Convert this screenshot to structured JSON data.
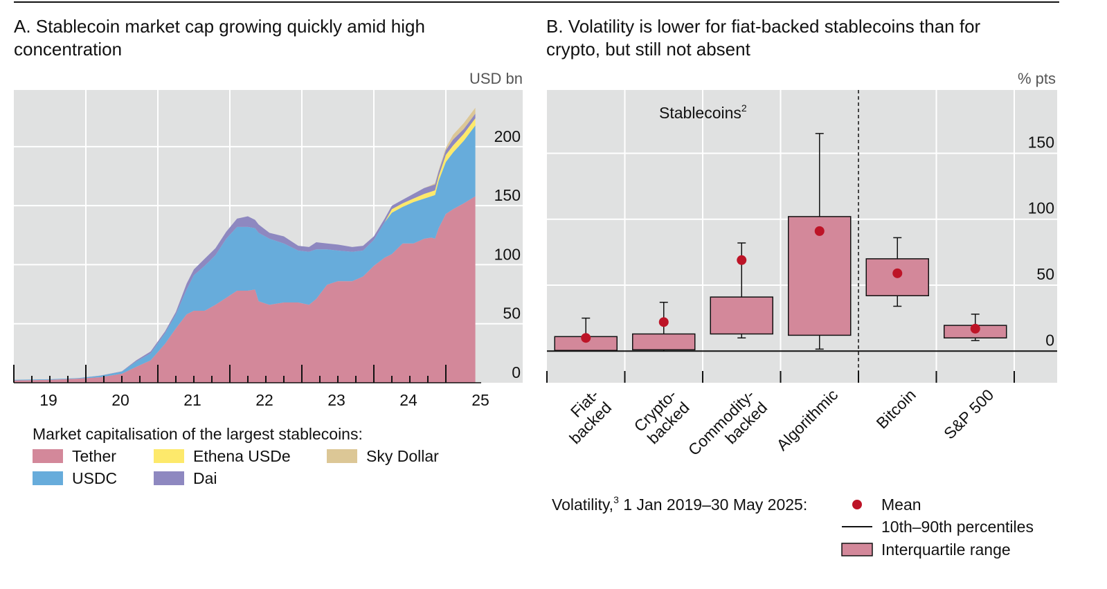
{
  "chart_data": [
    {
      "type": "area",
      "panel": "A",
      "title_line1": "A. Stablecoin market cap growing quickly amid high",
      "title_line2": "concentration",
      "unit": "USD bn",
      "stacked": true,
      "x_tick_labels": [
        "19",
        "20",
        "21",
        "22",
        "23",
        "24",
        "25"
      ],
      "y_ticks": [
        0,
        50,
        100,
        150,
        200
      ],
      "y_tick_labels": [
        "0",
        "50",
        "100",
        "150",
        "200"
      ],
      "ylim": [
        0,
        248
      ],
      "xlim": [
        2019.0,
        2026.0
      ],
      "grid": true,
      "legend_title": "Market capitalisation of the largest stablecoins:",
      "x": [
        2019.0,
        2019.5,
        2019.9,
        2020.2,
        2020.5,
        2020.7,
        2020.9,
        2021.1,
        2021.25,
        2021.4,
        2021.5,
        2021.65,
        2021.8,
        2021.95,
        2022.1,
        2022.25,
        2022.35,
        2022.4,
        2022.55,
        2022.75,
        2022.95,
        2023.1,
        2023.2,
        2023.35,
        2023.5,
        2023.7,
        2023.85,
        2024.0,
        2024.15,
        2024.25,
        2024.4,
        2024.55,
        2024.7,
        2024.8,
        2024.85,
        2024.9,
        2025.0,
        2025.1,
        2025.25,
        2025.41
      ],
      "series": [
        {
          "name": "Tether",
          "color": "#d3889a",
          "values": [
            2,
            2.5,
            3.5,
            4.7,
            7.6,
            13.5,
            19,
            33,
            46,
            58,
            61,
            61,
            66,
            72,
            78,
            78,
            79,
            69,
            66,
            68,
            68,
            66,
            71,
            83,
            86,
            86,
            90,
            99,
            106,
            109,
            118,
            118,
            122,
            123,
            122,
            131,
            143,
            147,
            152,
            158
          ]
        },
        {
          "name": "USDC",
          "color": "#67acdb",
          "values": [
            0.5,
            0.5,
            0.5,
            1.2,
            1.8,
            4.5,
            6,
            9,
            12,
            21,
            30,
            38,
            42,
            50,
            54,
            54,
            52,
            58,
            56,
            50,
            44,
            45,
            42,
            30,
            26,
            25,
            22,
            22,
            30,
            35,
            31,
            35,
            34,
            35,
            37,
            40,
            44,
            48,
            53,
            60
          ]
        },
        {
          "name": "Ethena USDe",
          "color": "#fde96b",
          "values": [
            0,
            0,
            0,
            0,
            0,
            0,
            0,
            0,
            0,
            0,
            0,
            0,
            0,
            0,
            0,
            0,
            0,
            0,
            0,
            0,
            0,
            0,
            0,
            0,
            0,
            0,
            0,
            0,
            0,
            3,
            3,
            3,
            4,
            4,
            4,
            4,
            6,
            6,
            6,
            6
          ]
        },
        {
          "name": "Dai",
          "color": "#8e88c0",
          "values": [
            0,
            0,
            0,
            0.2,
            0.3,
            1,
            1.5,
            1.5,
            2,
            5,
            5,
            6,
            6,
            6,
            7,
            9,
            7,
            7,
            5,
            6,
            4,
            4,
            6,
            5,
            5,
            4,
            4,
            3,
            3,
            3,
            3,
            4,
            5,
            5,
            5,
            4,
            4,
            5,
            4,
            4
          ]
        },
        {
          "name": "Sky Dollar",
          "color": "#dcc796",
          "values": [
            0,
            0,
            0,
            0,
            0,
            0,
            0,
            0,
            0,
            0,
            0,
            0,
            0,
            0,
            0,
            0,
            0,
            0,
            0,
            0,
            0,
            0,
            0,
            0,
            0,
            0,
            0,
            0,
            0,
            0,
            0,
            0,
            0,
            0.5,
            1,
            1,
            2,
            4,
            5,
            5
          ]
        }
      ],
      "legend_order": [
        0,
        2,
        4,
        1,
        3
      ]
    },
    {
      "type": "box",
      "panel": "B",
      "title_line1": "B. Volatility is lower for fiat-backed stablecoins than for",
      "title_line2": "crypto, but still not absent",
      "unit": "% pts",
      "group_label": "Stablecoins",
      "group_label_sup": "2",
      "y_ticks": [
        0,
        50,
        100,
        150
      ],
      "y_tick_labels": [
        "0",
        "50",
        "100",
        "150"
      ],
      "ylim": [
        -24,
        198
      ],
      "grid": true,
      "box_color": "#d3889a",
      "mean_color": "#bd1427",
      "categories": [
        {
          "label_lines": [
            "Fiat-",
            "backed"
          ],
          "p10": 0,
          "q1": 0.5,
          "q3": 11,
          "p90": 25,
          "mean": 10
        },
        {
          "label_lines": [
            "Crypto-",
            "backed"
          ],
          "p10": 0,
          "q1": 1,
          "q3": 13,
          "p90": 37,
          "mean": 22
        },
        {
          "label_lines": [
            "Commodity-",
            "backed"
          ],
          "p10": 10,
          "q1": 13,
          "q3": 41,
          "p90": 82,
          "mean": 69
        },
        {
          "label_lines": [
            "Algorithmic"
          ],
          "p10": 1.5,
          "q1": 12,
          "q3": 102,
          "p90": 165,
          "mean": 91
        },
        {
          "label_lines": [
            "Bitcoin"
          ],
          "p10": 34,
          "q1": 42,
          "q3": 70,
          "p90": 86,
          "mean": 59
        },
        {
          "label_lines": [
            "S&P 500"
          ],
          "p10": 8,
          "q1": 10,
          "q3": 19.5,
          "p90": 28,
          "mean": 17
        }
      ],
      "legend_prefix": "Volatility,",
      "legend_prefix_sup": "3",
      "legend_period": " 1 Jan 2019–30 May 2025:",
      "legend_mean": "Mean",
      "legend_whisker": "10th–90th percentiles",
      "legend_box": "Interquartile range"
    }
  ]
}
